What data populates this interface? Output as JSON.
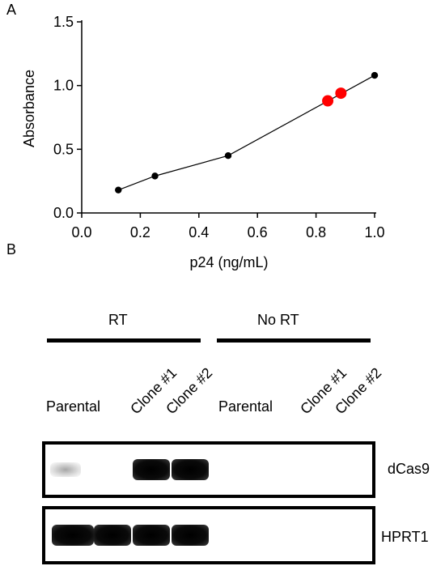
{
  "panels": {
    "a_label": "A",
    "b_label": "B"
  },
  "chart_data": {
    "type": "scatter",
    "xlabel": "p24 (ng/mL)",
    "ylabel": "Absorbance",
    "xlim": [
      0.0,
      1.0
    ],
    "ylim": [
      0.0,
      1.5
    ],
    "x_ticks": [
      "0.0",
      "0.2",
      "0.4",
      "0.6",
      "0.8",
      "1.0"
    ],
    "y_ticks": [
      "0.0",
      "0.5",
      "1.0",
      "1.5"
    ],
    "series": [
      {
        "kind": "standard-curve",
        "color": "#000000",
        "x": [
          0.125,
          0.25,
          0.5,
          1.0
        ],
        "y": [
          0.18,
          0.29,
          0.45,
          1.08
        ]
      },
      {
        "kind": "samples",
        "color": "#ff0000",
        "x": [
          0.84,
          0.885
        ],
        "y": [
          0.88,
          0.94
        ]
      }
    ]
  },
  "blot": {
    "groups": [
      "RT",
      "No RT"
    ],
    "lanes": [
      "Parental",
      "Clone #1",
      "Clone #2",
      "Parental",
      "Clone #1",
      "Clone #2"
    ],
    "markers": [
      "dCas9",
      "HPRT1"
    ],
    "signals": {
      "dCas9": [
        0.1,
        0,
        1,
        1,
        0,
        0
      ],
      "HPRT1": [
        1,
        1,
        1,
        1,
        0,
        0
      ]
    }
  }
}
